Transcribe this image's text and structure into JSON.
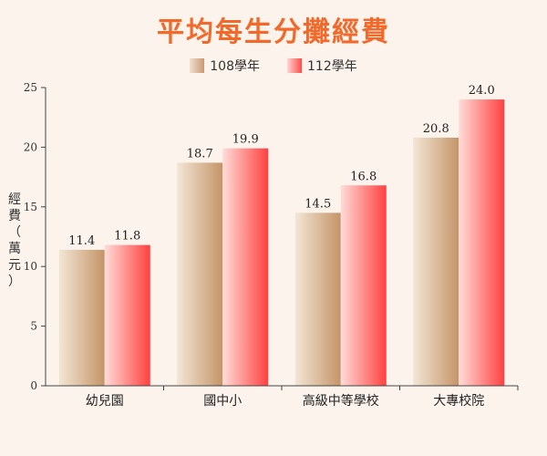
{
  "title": "平均每生分攤經費",
  "legend": [
    "108學年",
    "112學年"
  ],
  "ylabel": "經費（萬元）",
  "chart_data": {
    "type": "bar",
    "title": "平均每生分攤經費",
    "categories": [
      "幼兒園",
      "國中小",
      "高級中等學校",
      "大專校院"
    ],
    "series": [
      {
        "name": "108學年",
        "values": [
          11.4,
          18.7,
          14.5,
          20.8
        ],
        "color": "#c99a72"
      },
      {
        "name": "112學年",
        "values": [
          11.8,
          19.9,
          16.8,
          24.0
        ],
        "color": "#ff4b4b"
      }
    ],
    "xlabel": "",
    "ylabel": "經費（萬元）",
    "ylim": [
      0,
      25
    ],
    "yticks": [
      0,
      5,
      10,
      15,
      20,
      25
    ],
    "legend_position": "top-center",
    "grid": false
  }
}
